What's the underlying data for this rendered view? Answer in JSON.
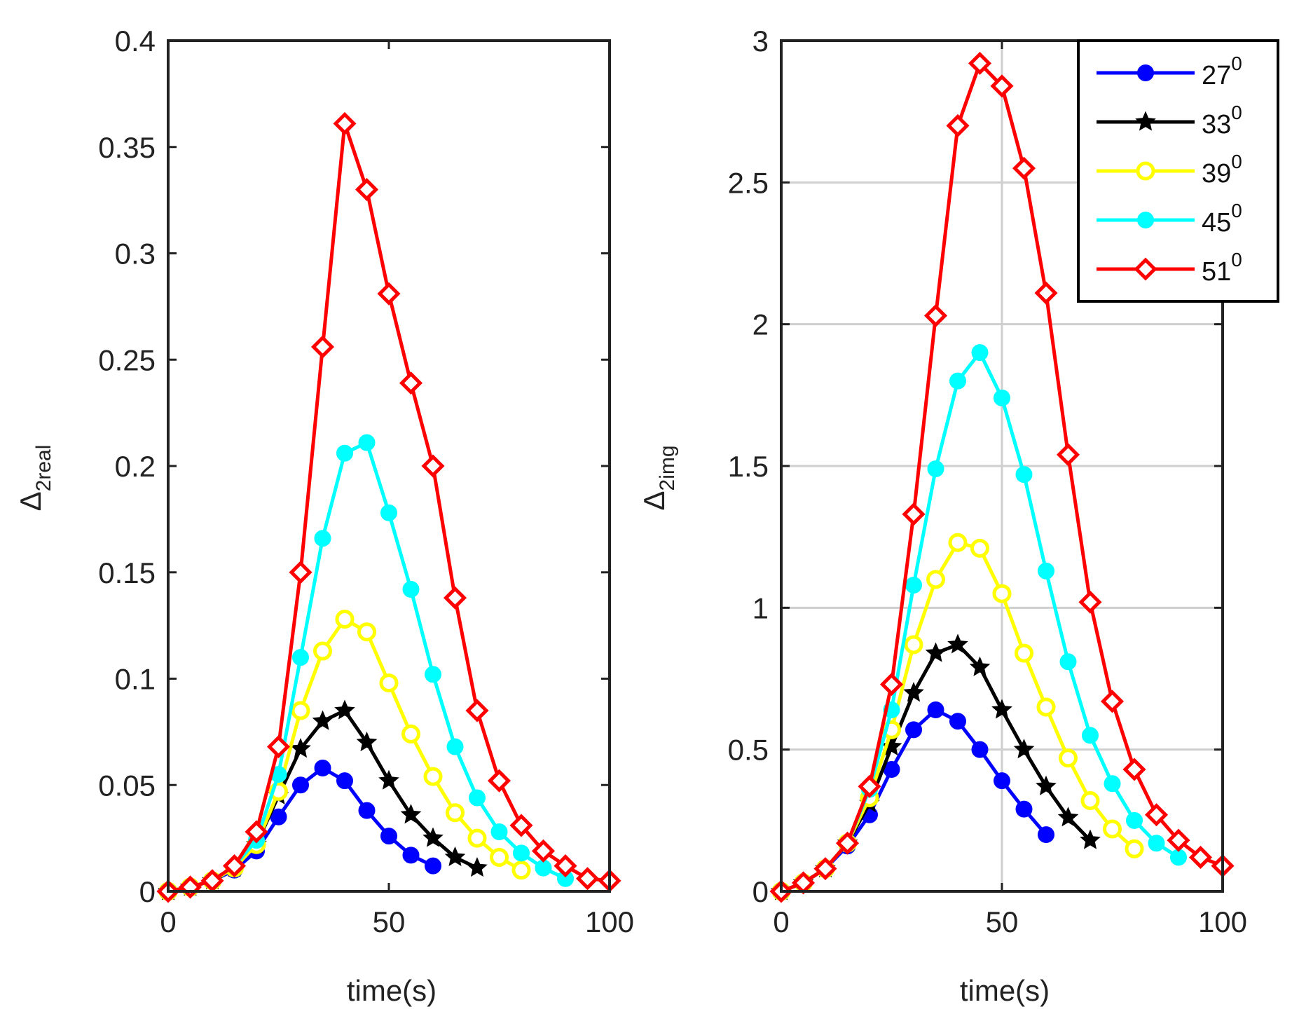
{
  "chart_data": [
    {
      "type": "line",
      "xlabel": "time(s)",
      "ylabel": {
        "symbol": "Δ",
        "subscript": "2real"
      },
      "xlim": [
        0,
        100
      ],
      "ylim": [
        0,
        0.4
      ],
      "xticks": [
        0,
        50,
        100
      ],
      "yticks": [
        0,
        0.05,
        0.1,
        0.15,
        0.2,
        0.25,
        0.3,
        0.35,
        0.4
      ],
      "xtick_labels": [
        "0",
        "50",
        "100"
      ],
      "ytick_labels": [
        "0",
        "0.05",
        "0.1",
        "0.15",
        "0.2",
        "0.25",
        "0.3",
        "0.35",
        "0.4"
      ],
      "grid": false,
      "legend": false,
      "series": [
        {
          "name": "27",
          "color": "#0000ff",
          "marker": "filled-circle",
          "x": [
            0,
            5,
            10,
            15,
            20,
            25,
            30,
            35,
            40,
            45,
            50,
            55,
            60
          ],
          "y": [
            0,
            0.002,
            0.005,
            0.01,
            0.019,
            0.035,
            0.05,
            0.058,
            0.052,
            0.038,
            0.026,
            0.017,
            0.012
          ]
        },
        {
          "name": "33",
          "color": "#000000",
          "marker": "filled-star",
          "x": [
            0,
            5,
            10,
            15,
            20,
            25,
            30,
            35,
            40,
            45,
            50,
            55,
            60,
            65,
            70
          ],
          "y": [
            0,
            0.002,
            0.005,
            0.011,
            0.022,
            0.045,
            0.067,
            0.08,
            0.085,
            0.07,
            0.052,
            0.036,
            0.025,
            0.016,
            0.011
          ]
        },
        {
          "name": "39",
          "color": "#ffff00",
          "marker": "open-circle",
          "x": [
            0,
            5,
            10,
            15,
            20,
            25,
            30,
            35,
            40,
            45,
            50,
            55,
            60,
            65,
            70,
            75,
            80
          ],
          "y": [
            0,
            0.002,
            0.005,
            0.011,
            0.022,
            0.047,
            0.085,
            0.113,
            0.128,
            0.122,
            0.098,
            0.074,
            0.054,
            0.037,
            0.025,
            0.016,
            0.01
          ]
        },
        {
          "name": "45",
          "color": "#00ffff",
          "marker": "filled-circle",
          "x": [
            0,
            5,
            10,
            15,
            20,
            25,
            30,
            35,
            40,
            45,
            50,
            55,
            60,
            65,
            70,
            75,
            80,
            85,
            90
          ],
          "y": [
            0,
            0.002,
            0.005,
            0.012,
            0.024,
            0.055,
            0.11,
            0.166,
            0.206,
            0.211,
            0.178,
            0.142,
            0.102,
            0.068,
            0.044,
            0.028,
            0.018,
            0.011,
            0.006
          ]
        },
        {
          "name": "51",
          "color": "#ff0000",
          "marker": "open-diamond",
          "x": [
            0,
            5,
            10,
            15,
            20,
            25,
            30,
            35,
            40,
            45,
            50,
            55,
            60,
            65,
            70,
            75,
            80,
            85,
            90,
            95,
            100
          ],
          "y": [
            0,
            0.002,
            0.005,
            0.012,
            0.028,
            0.068,
            0.15,
            0.256,
            0.361,
            0.33,
            0.281,
            0.239,
            0.2,
            0.138,
            0.085,
            0.052,
            0.031,
            0.019,
            0.012,
            0.006,
            0.005
          ]
        }
      ]
    },
    {
      "type": "line",
      "xlabel": "time(s)",
      "ylabel": {
        "symbol": "Δ",
        "subscript": "2img"
      },
      "xlim": [
        0,
        100
      ],
      "ylim": [
        0,
        3
      ],
      "xticks": [
        0,
        50,
        100
      ],
      "yticks": [
        0,
        0.5,
        1,
        1.5,
        2,
        2.5,
        3
      ],
      "xtick_labels": [
        "0",
        "50",
        "100"
      ],
      "ytick_labels": [
        "0",
        "0.5",
        "1",
        "1.5",
        "2",
        "2.5",
        "3"
      ],
      "grid": true,
      "legend": true,
      "legend_location": "top-right",
      "series": [
        {
          "name": "27",
          "color": "#0000ff",
          "marker": "filled-circle",
          "x": [
            0,
            5,
            10,
            15,
            20,
            25,
            30,
            35,
            40,
            45,
            50,
            55,
            60
          ],
          "y": [
            0,
            0.03,
            0.08,
            0.16,
            0.27,
            0.43,
            0.57,
            0.64,
            0.6,
            0.5,
            0.39,
            0.29,
            0.2
          ]
        },
        {
          "name": "33",
          "color": "#000000",
          "marker": "filled-star",
          "x": [
            0,
            5,
            10,
            15,
            20,
            25,
            30,
            35,
            40,
            45,
            50,
            55,
            60,
            65,
            70
          ],
          "y": [
            0,
            0.03,
            0.08,
            0.17,
            0.31,
            0.51,
            0.7,
            0.84,
            0.87,
            0.79,
            0.64,
            0.5,
            0.37,
            0.26,
            0.18
          ]
        },
        {
          "name": "39",
          "color": "#ffff00",
          "marker": "open-circle",
          "x": [
            0,
            5,
            10,
            15,
            20,
            25,
            30,
            35,
            40,
            45,
            50,
            55,
            60,
            65,
            70,
            75,
            80
          ],
          "y": [
            0,
            0.03,
            0.08,
            0.17,
            0.33,
            0.57,
            0.87,
            1.1,
            1.23,
            1.21,
            1.05,
            0.84,
            0.65,
            0.47,
            0.32,
            0.22,
            0.15
          ]
        },
        {
          "name": "45",
          "color": "#00ffff",
          "marker": "filled-circle",
          "x": [
            0,
            5,
            10,
            15,
            20,
            25,
            30,
            35,
            40,
            45,
            50,
            55,
            60,
            65,
            70,
            75,
            80,
            85,
            90
          ],
          "y": [
            0,
            0.03,
            0.08,
            0.17,
            0.36,
            0.64,
            1.08,
            1.49,
            1.8,
            1.9,
            1.74,
            1.47,
            1.13,
            0.81,
            0.55,
            0.38,
            0.25,
            0.17,
            0.12
          ]
        },
        {
          "name": "51",
          "color": "#ff0000",
          "marker": "open-diamond",
          "x": [
            0,
            5,
            10,
            15,
            20,
            25,
            30,
            35,
            40,
            45,
            50,
            55,
            60,
            65,
            70,
            75,
            80,
            85,
            90,
            95,
            100
          ],
          "y": [
            0,
            0.03,
            0.08,
            0.17,
            0.37,
            0.73,
            1.33,
            2.03,
            2.7,
            2.92,
            2.84,
            2.55,
            2.11,
            1.54,
            1.02,
            0.67,
            0.43,
            0.27,
            0.18,
            0.12,
            0.09
          ]
        }
      ]
    }
  ],
  "legend_entries": [
    {
      "label": "27",
      "sup": "0",
      "color": "#0000ff",
      "marker": "filled-circle"
    },
    {
      "label": "33",
      "sup": "0",
      "color": "#000000",
      "marker": "filled-star"
    },
    {
      "label": "39",
      "sup": "0",
      "color": "#ffff00",
      "marker": "open-circle"
    },
    {
      "label": "45",
      "sup": "0",
      "color": "#00ffff",
      "marker": "filled-circle"
    },
    {
      "label": "51",
      "sup": "0",
      "color": "#ff0000",
      "marker": "open-diamond"
    }
  ]
}
